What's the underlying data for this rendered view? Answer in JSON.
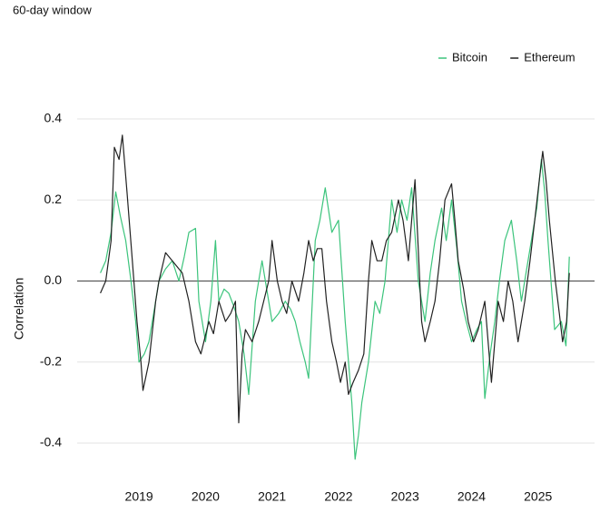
{
  "chart_data": {
    "type": "line",
    "subtitle": "60-day window",
    "ylabel": "Correlation",
    "xlim": [
      2018.07,
      2025.85
    ],
    "xticks": [
      2019,
      2020,
      2021,
      2022,
      2023,
      2024,
      2025
    ],
    "ylim": [
      -0.4,
      0.4
    ],
    "yticks": [
      0.4,
      0.2,
      {
        "value": 0,
        "label": "0.0"
      },
      -0.2,
      -0.4
    ],
    "grid": true,
    "legend": "top-right",
    "series": [
      {
        "name": "Bitcoin",
        "color": "#3cc47c",
        "x": [
          2018.42,
          2018.5,
          2018.58,
          2018.65,
          2018.72,
          2018.8,
          2018.88,
          2018.95,
          2019.0,
          2019.08,
          2019.15,
          2019.22,
          2019.3,
          2019.4,
          2019.5,
          2019.6,
          2019.68,
          2019.75,
          2019.85,
          2019.9,
          2020.0,
          2020.08,
          2020.15,
          2020.2,
          2020.28,
          2020.35,
          2020.42,
          2020.5,
          2020.58,
          2020.65,
          2020.75,
          2020.85,
          2020.92,
          2021.0,
          2021.1,
          2021.2,
          2021.28,
          2021.35,
          2021.42,
          2021.5,
          2021.55,
          2021.65,
          2021.72,
          2021.8,
          2021.9,
          2022.0,
          2022.1,
          2022.2,
          2022.25,
          2022.3,
          2022.35,
          2022.45,
          2022.55,
          2022.62,
          2022.7,
          2022.8,
          2022.88,
          2022.95,
          2023.03,
          2023.1,
          2023.2,
          2023.3,
          2023.38,
          2023.45,
          2023.55,
          2023.62,
          2023.7,
          2023.78,
          2023.85,
          2023.92,
          2024.0,
          2024.08,
          2024.15,
          2024.2,
          2024.28,
          2024.35,
          2024.42,
          2024.5,
          2024.6,
          2024.68,
          2024.75,
          2024.82,
          2024.9,
          2024.98,
          2025.05,
          2025.1,
          2025.15,
          2025.25,
          2025.35,
          2025.42,
          2025.47
        ],
        "values": [
          0.02,
          0.05,
          0.12,
          0.22,
          0.16,
          0.1,
          0.0,
          -0.1,
          -0.2,
          -0.18,
          -0.15,
          -0.08,
          0.0,
          0.03,
          0.05,
          0.0,
          0.06,
          0.12,
          0.13,
          -0.05,
          -0.15,
          -0.05,
          0.1,
          -0.05,
          -0.02,
          -0.03,
          -0.06,
          -0.1,
          -0.18,
          -0.28,
          -0.05,
          0.05,
          -0.02,
          -0.1,
          -0.08,
          -0.05,
          -0.07,
          -0.1,
          -0.15,
          -0.2,
          -0.24,
          0.1,
          0.15,
          0.23,
          0.12,
          0.15,
          -0.1,
          -0.3,
          -0.44,
          -0.38,
          -0.3,
          -0.2,
          -0.05,
          -0.08,
          0.0,
          0.2,
          0.12,
          0.2,
          0.15,
          0.23,
          0.0,
          -0.1,
          0.02,
          0.1,
          0.18,
          0.1,
          0.2,
          0.08,
          -0.05,
          -0.1,
          -0.15,
          -0.12,
          -0.1,
          -0.29,
          -0.18,
          -0.1,
          0.0,
          0.1,
          0.15,
          0.05,
          -0.05,
          0.02,
          0.1,
          0.18,
          0.3,
          0.22,
          0.1,
          -0.12,
          -0.1,
          -0.16,
          0.06
        ]
      },
      {
        "name": "Ethereum",
        "color": "#222222",
        "x": [
          2018.42,
          2018.5,
          2018.58,
          2018.63,
          2018.7,
          2018.75,
          2018.82,
          2018.9,
          2018.97,
          2019.03,
          2019.06,
          2019.15,
          2019.25,
          2019.3,
          2019.4,
          2019.5,
          2019.65,
          2019.75,
          2019.85,
          2019.93,
          2020.05,
          2020.12,
          2020.2,
          2020.3,
          2020.38,
          2020.45,
          2020.5,
          2020.55,
          2020.6,
          2020.7,
          2020.8,
          2020.95,
          2021.0,
          2021.08,
          2021.15,
          2021.22,
          2021.3,
          2021.4,
          2021.48,
          2021.55,
          2021.62,
          2021.68,
          2021.75,
          2021.82,
          2021.9,
          2021.97,
          2022.03,
          2022.1,
          2022.15,
          2022.22,
          2022.3,
          2022.38,
          2022.45,
          2022.5,
          2022.58,
          2022.65,
          2022.72,
          2022.8,
          2022.9,
          2022.97,
          2023.05,
          2023.1,
          2023.15,
          2023.25,
          2023.3,
          2023.38,
          2023.45,
          2023.52,
          2023.6,
          2023.7,
          2023.75,
          2023.8,
          2023.88,
          2023.95,
          2024.03,
          2024.1,
          2024.2,
          2024.3,
          2024.4,
          2024.48,
          2024.55,
          2024.62,
          2024.7,
          2024.8,
          2024.88,
          2024.95,
          2025.02,
          2025.07,
          2025.12,
          2025.17,
          2025.26,
          2025.32,
          2025.37,
          2025.43,
          2025.47
        ],
        "values": [
          -0.03,
          0.0,
          0.1,
          0.33,
          0.3,
          0.36,
          0.22,
          0.05,
          -0.1,
          -0.2,
          -0.27,
          -0.2,
          -0.05,
          0.0,
          0.07,
          0.05,
          0.02,
          -0.05,
          -0.15,
          -0.18,
          -0.1,
          -0.13,
          -0.05,
          -0.1,
          -0.08,
          -0.05,
          -0.35,
          -0.18,
          -0.12,
          -0.15,
          -0.1,
          0.0,
          0.1,
          0.0,
          -0.05,
          -0.08,
          0.0,
          -0.05,
          0.02,
          0.1,
          0.05,
          0.08,
          0.08,
          -0.05,
          -0.15,
          -0.2,
          -0.25,
          -0.2,
          -0.28,
          -0.25,
          -0.22,
          -0.18,
          0.0,
          0.1,
          0.05,
          0.05,
          0.1,
          0.12,
          0.2,
          0.15,
          0.05,
          0.15,
          0.25,
          -0.1,
          -0.15,
          -0.1,
          -0.05,
          0.05,
          0.2,
          0.24,
          0.15,
          0.05,
          -0.02,
          -0.1,
          -0.15,
          -0.12,
          -0.05,
          -0.25,
          -0.05,
          -0.1,
          0.0,
          -0.05,
          -0.15,
          -0.05,
          0.05,
          0.15,
          0.25,
          0.32,
          0.25,
          0.15,
          0.0,
          -0.08,
          -0.15,
          -0.1,
          0.02
        ]
      }
    ]
  }
}
